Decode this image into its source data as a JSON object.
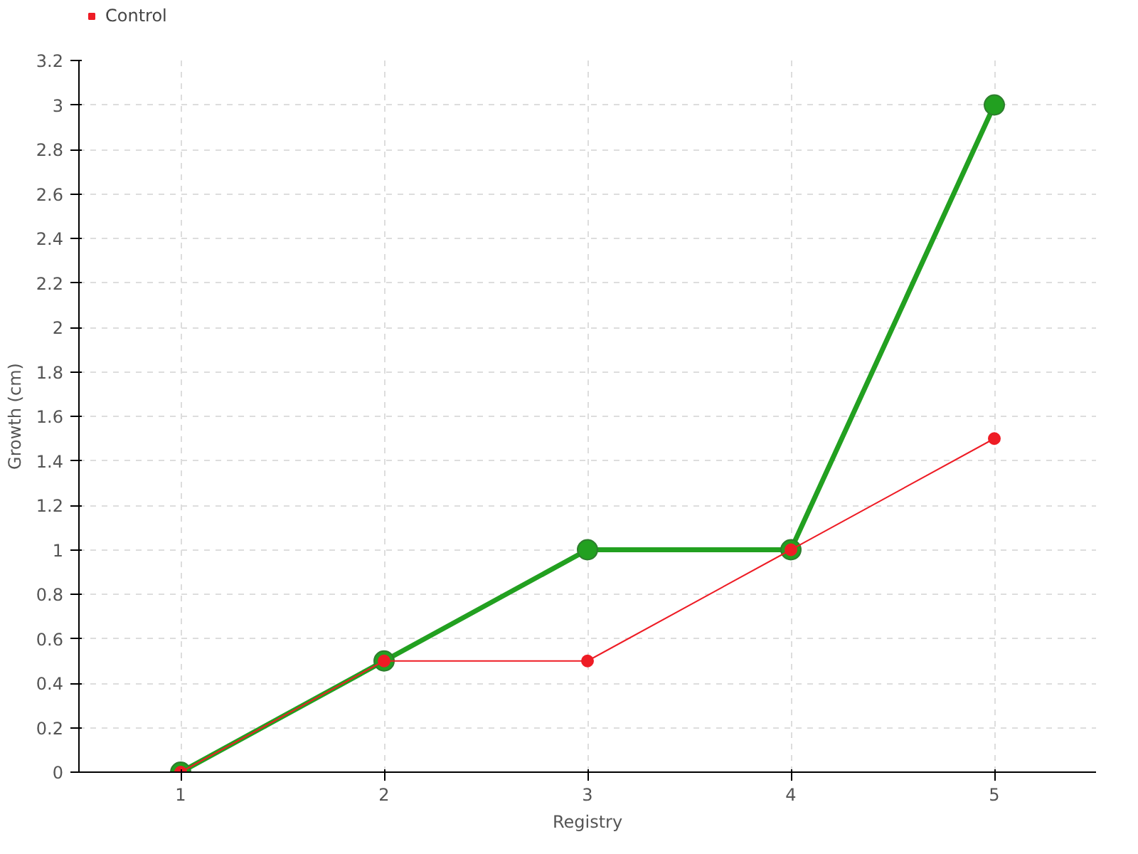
{
  "chart_data": {
    "type": "line",
    "xlabel": "Registry",
    "ylabel": "Growth (cm)",
    "x": [
      1,
      2,
      3,
      4,
      5
    ],
    "xlim": [
      0.5,
      5.5
    ],
    "xticks": [
      1,
      2,
      3,
      4,
      5
    ],
    "ylim": [
      0,
      3.2
    ],
    "yticks": [
      0,
      0.2,
      0.4,
      0.6,
      0.8,
      1,
      1.2,
      1.4,
      1.6,
      1.8,
      2,
      2.2,
      2.4,
      2.6,
      2.8,
      3,
      3.2
    ],
    "grid": true,
    "legend": "top left",
    "marker": "circle",
    "line_style": "solid",
    "series": [
      {
        "color": "#22a020",
        "values": [
          0,
          0.5,
          1,
          1,
          3
        ]
      },
      {
        "name": "Control",
        "color": "#ee1c25",
        "values": [
          0,
          0.5,
          0.5,
          1,
          1.5
        ]
      }
    ]
  }
}
